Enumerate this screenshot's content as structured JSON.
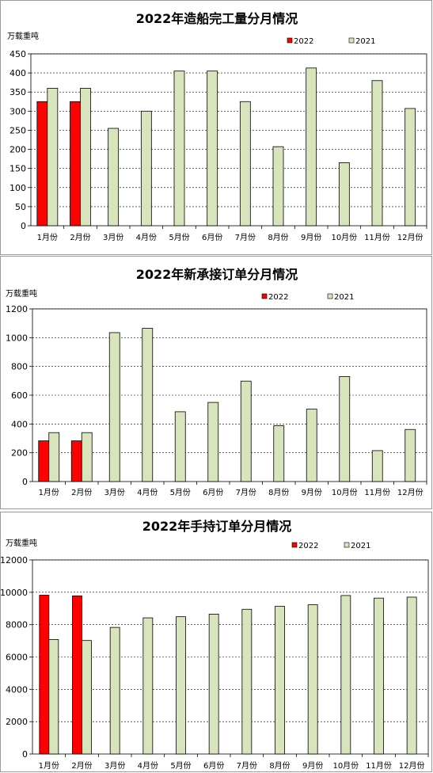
{
  "chart_data": [
    {
      "type": "bar",
      "title": "2022年造船完工量分月情况",
      "ylabel": "万载重吨",
      "ylim": [
        0,
        450
      ],
      "yticks": [
        0,
        50,
        100,
        150,
        200,
        250,
        300,
        350,
        400,
        450
      ],
      "categories": [
        "1月份",
        "2月份",
        "3月份",
        "4月份",
        "5月份",
        "6月份",
        "7月份",
        "8月份",
        "9月份",
        "10月份",
        "11月份",
        "12月份"
      ],
      "series": [
        {
          "name": "2022",
          "color": "#ff0000",
          "values": [
            325,
            325,
            null,
            null,
            null,
            null,
            null,
            null,
            null,
            null,
            null,
            null
          ]
        },
        {
          "name": "2021",
          "color": "#d8e4bc",
          "values": [
            360,
            360,
            255,
            300,
            405,
            405,
            325,
            207,
            413,
            165,
            380,
            307
          ]
        }
      ],
      "legend": "top-right",
      "grid": true
    },
    {
      "type": "bar",
      "title": "2022年新承接订单分月情况",
      "ylabel": "万载重吨",
      "ylim": [
        0,
        1200
      ],
      "yticks": [
        0,
        200,
        400,
        600,
        800,
        1000,
        1200
      ],
      "categories": [
        "1月份",
        "2月份",
        "3月份",
        "4月份",
        "5月份",
        "6月份",
        "7月份",
        "8月份",
        "9月份",
        "10月份",
        "11月份",
        "12月份"
      ],
      "series": [
        {
          "name": "2022",
          "color": "#ff0000",
          "values": [
            283,
            283,
            null,
            null,
            null,
            null,
            null,
            null,
            null,
            null,
            null,
            null
          ]
        },
        {
          "name": "2021",
          "color": "#d8e4bc",
          "values": [
            340,
            340,
            1035,
            1065,
            485,
            550,
            698,
            388,
            503,
            730,
            215,
            362
          ]
        }
      ],
      "legend": "top-right",
      "grid": true
    },
    {
      "type": "bar",
      "title": "2022年手持订单分月情况",
      "ylabel": "万载重吨",
      "ylim": [
        0,
        12000
      ],
      "yticks": [
        0,
        2000,
        4000,
        6000,
        8000,
        10000,
        12000
      ],
      "categories": [
        "1月份",
        "2月份",
        "3月份",
        "4月份",
        "5月份",
        "6月份",
        "7月份",
        "8月份",
        "9月份",
        "10月份",
        "11月份",
        "12月份"
      ],
      "series": [
        {
          "name": "2022",
          "color": "#ff0000",
          "values": [
            9820,
            9780,
            null,
            null,
            null,
            null,
            null,
            null,
            null,
            null,
            null,
            null
          ]
        },
        {
          "name": "2021",
          "color": "#d8e4bc",
          "values": [
            7080,
            7020,
            7830,
            8420,
            8490,
            8650,
            8950,
            9130,
            9230,
            9800,
            9640,
            9700
          ]
        }
      ],
      "legend": "top-right",
      "grid": true
    }
  ]
}
